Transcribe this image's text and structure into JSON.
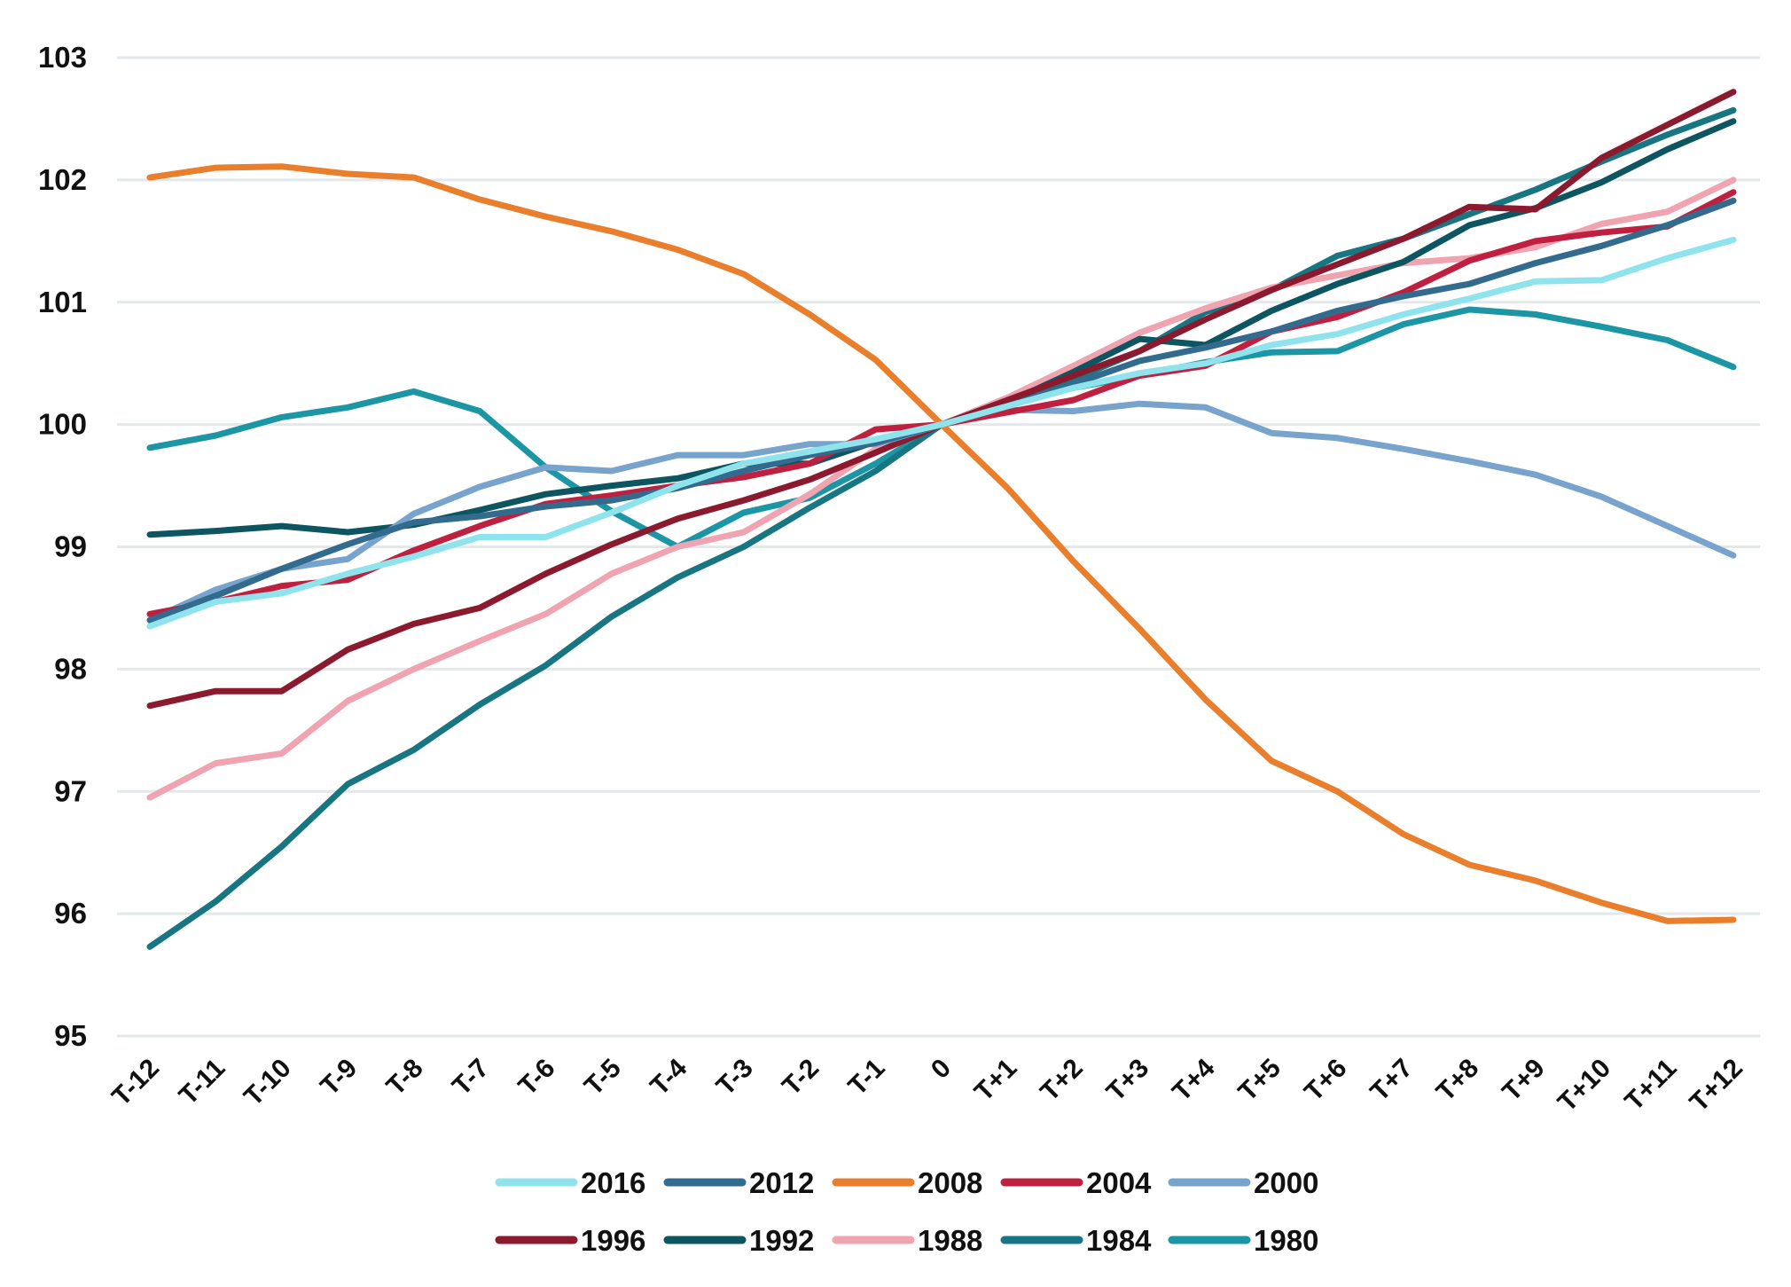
{
  "chart_data": {
    "type": "line",
    "title": "",
    "xlabel": "",
    "ylabel": "",
    "ylim": [
      95,
      103
    ],
    "yticks": [
      95,
      96,
      97,
      98,
      99,
      100,
      101,
      102,
      103
    ],
    "grid": "horizontal",
    "legend_position": "bottom",
    "categories": [
      "T-12",
      "T-11",
      "T-10",
      "T-9",
      "T-8",
      "T-7",
      "T-6",
      "T-5",
      "T-4",
      "T-3",
      "T-2",
      "T-1",
      "0",
      "T+1",
      "T+2",
      "T+3",
      "T+4",
      "T+5",
      "T+6",
      "T+7",
      "T+8",
      "T+9",
      "T+10",
      "T+11",
      "T+12"
    ],
    "series": [
      {
        "name": "2016",
        "color": "#8ee3ec",
        "values": [
          98.35,
          98.55,
          98.62,
          98.78,
          98.92,
          99.08,
          99.08,
          99.28,
          99.5,
          99.68,
          99.78,
          99.88,
          100.0,
          100.15,
          100.3,
          100.42,
          100.5,
          100.65,
          100.74,
          100.9,
          101.03,
          101.17,
          101.18,
          101.36,
          101.51
        ]
      },
      {
        "name": "2012",
        "color": "#336b8e",
        "values": [
          98.4,
          98.6,
          98.82,
          99.02,
          99.2,
          99.25,
          99.33,
          99.38,
          99.48,
          99.62,
          99.75,
          99.85,
          100.0,
          100.15,
          100.33,
          100.52,
          100.63,
          100.76,
          100.93,
          101.05,
          101.15,
          101.32,
          101.46,
          101.63,
          101.83
        ]
      },
      {
        "name": "2008",
        "color": "#e97f2c",
        "values": [
          102.02,
          102.1,
          102.11,
          102.05,
          102.02,
          101.84,
          101.7,
          101.58,
          101.43,
          101.23,
          100.9,
          100.53,
          100.0,
          99.48,
          98.88,
          98.33,
          97.75,
          97.25,
          97.0,
          96.65,
          96.4,
          96.27,
          96.09,
          95.94,
          95.95
        ]
      },
      {
        "name": "2004",
        "color": "#c0203f",
        "values": [
          98.45,
          98.55,
          98.68,
          98.73,
          98.97,
          99.17,
          99.35,
          99.42,
          99.5,
          99.57,
          99.68,
          99.96,
          100.0,
          100.1,
          100.2,
          100.4,
          100.48,
          100.76,
          100.88,
          101.08,
          101.34,
          101.5,
          101.57,
          101.62,
          101.9
        ]
      },
      {
        "name": "2000",
        "color": "#77a3cd",
        "values": [
          98.4,
          98.65,
          98.82,
          98.9,
          99.27,
          99.49,
          99.65,
          99.62,
          99.75,
          99.75,
          99.84,
          99.84,
          100.0,
          100.12,
          100.11,
          100.17,
          100.14,
          99.93,
          99.89,
          99.8,
          99.7,
          99.59,
          99.41,
          99.17,
          98.93
        ]
      },
      {
        "name": "1996",
        "color": "#8b1a2e",
        "values": [
          97.7,
          97.82,
          97.82,
          98.16,
          98.37,
          98.5,
          98.78,
          99.02,
          99.23,
          99.38,
          99.55,
          99.77,
          100.0,
          100.2,
          100.4,
          100.6,
          100.86,
          101.1,
          101.31,
          101.52,
          101.78,
          101.76,
          102.18,
          102.45,
          102.72
        ]
      },
      {
        "name": "1992",
        "color": "#0d5560",
        "values": [
          99.1,
          99.13,
          99.17,
          99.12,
          99.18,
          99.3,
          99.43,
          99.5,
          99.56,
          99.68,
          99.68,
          99.86,
          100.0,
          100.18,
          100.43,
          100.7,
          100.65,
          100.93,
          101.15,
          101.33,
          101.63,
          101.77,
          101.98,
          102.25,
          102.48
        ]
      },
      {
        "name": "1988",
        "color": "#f0a3b0",
        "values": [
          96.95,
          97.23,
          97.31,
          97.74,
          98.0,
          98.23,
          98.45,
          98.78,
          99.0,
          99.12,
          99.43,
          99.8,
          100.0,
          100.22,
          100.48,
          100.75,
          100.95,
          101.12,
          101.22,
          101.32,
          101.36,
          101.45,
          101.64,
          101.74,
          102.0
        ]
      },
      {
        "name": "1984",
        "color": "#187682",
        "values": [
          95.73,
          96.1,
          96.55,
          97.06,
          97.34,
          97.71,
          98.03,
          98.43,
          98.75,
          99.0,
          99.32,
          99.62,
          100.0,
          100.18,
          100.37,
          100.6,
          100.92,
          101.1,
          101.38,
          101.52,
          101.72,
          101.92,
          102.15,
          102.37,
          102.57
        ]
      },
      {
        "name": "1980",
        "color": "#1c96a4",
        "values": [
          99.81,
          99.91,
          100.06,
          100.14,
          100.27,
          100.11,
          99.65,
          99.29,
          99.0,
          99.28,
          99.4,
          99.68,
          100.0,
          100.21,
          100.3,
          100.4,
          100.51,
          100.59,
          100.6,
          100.82,
          100.94,
          100.9,
          100.8,
          100.69,
          100.47
        ]
      }
    ]
  }
}
